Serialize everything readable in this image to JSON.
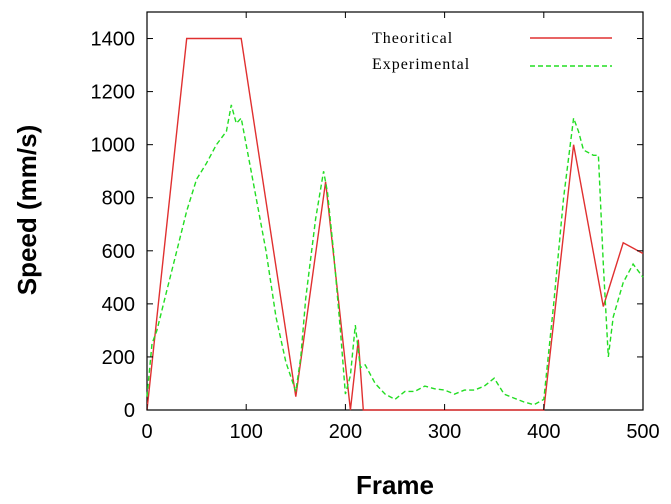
{
  "chart_data": {
    "type": "line",
    "title": "",
    "xlabel": "Frame",
    "ylabel": "Speed (mm/s)",
    "xlim": [
      0,
      500
    ],
    "ylim": [
      0,
      1500
    ],
    "x_ticks": [
      "0",
      "100",
      "200",
      "300",
      "400",
      "500"
    ],
    "y_ticks": [
      "0",
      "200",
      "400",
      "600",
      "800",
      "1000",
      "1200",
      "1400"
    ],
    "grid": false,
    "legend_position": "top-right",
    "series": [
      {
        "name": "Theoritical",
        "color": "#e03030",
        "style": "solid",
        "x": [
          0,
          40,
          95,
          150,
          180,
          205,
          213,
          218,
          400,
          430,
          460,
          480,
          500
        ],
        "y": [
          0,
          1400,
          1400,
          50,
          860,
          0,
          265,
          0,
          0,
          1000,
          390,
          630,
          590
        ]
      },
      {
        "name": "Experimental",
        "color": "#22dd22",
        "style": "dashed",
        "x": [
          0,
          5,
          10,
          20,
          30,
          40,
          50,
          60,
          70,
          80,
          85,
          90,
          95,
          100,
          110,
          120,
          130,
          140,
          150,
          155,
          160,
          170,
          178,
          182,
          188,
          195,
          200,
          205,
          210,
          215,
          220,
          230,
          240,
          250,
          260,
          270,
          280,
          290,
          300,
          310,
          320,
          330,
          340,
          350,
          360,
          370,
          380,
          390,
          400,
          410,
          420,
          430,
          435,
          440,
          445,
          450,
          455,
          460,
          465,
          470,
          480,
          490,
          500
        ],
        "y": [
          50,
          250,
          300,
          450,
          600,
          750,
          870,
          930,
          1000,
          1050,
          1150,
          1080,
          1100,
          1000,
          800,
          600,
          350,
          180,
          70,
          200,
          420,
          720,
          900,
          820,
          600,
          300,
          60,
          130,
          320,
          160,
          170,
          100,
          60,
          40,
          70,
          70,
          90,
          80,
          75,
          60,
          75,
          75,
          90,
          120,
          60,
          45,
          30,
          20,
          40,
          400,
          800,
          1100,
          1050,
          980,
          970,
          960,
          960,
          550,
          200,
          350,
          480,
          550,
          500
        ]
      }
    ]
  }
}
